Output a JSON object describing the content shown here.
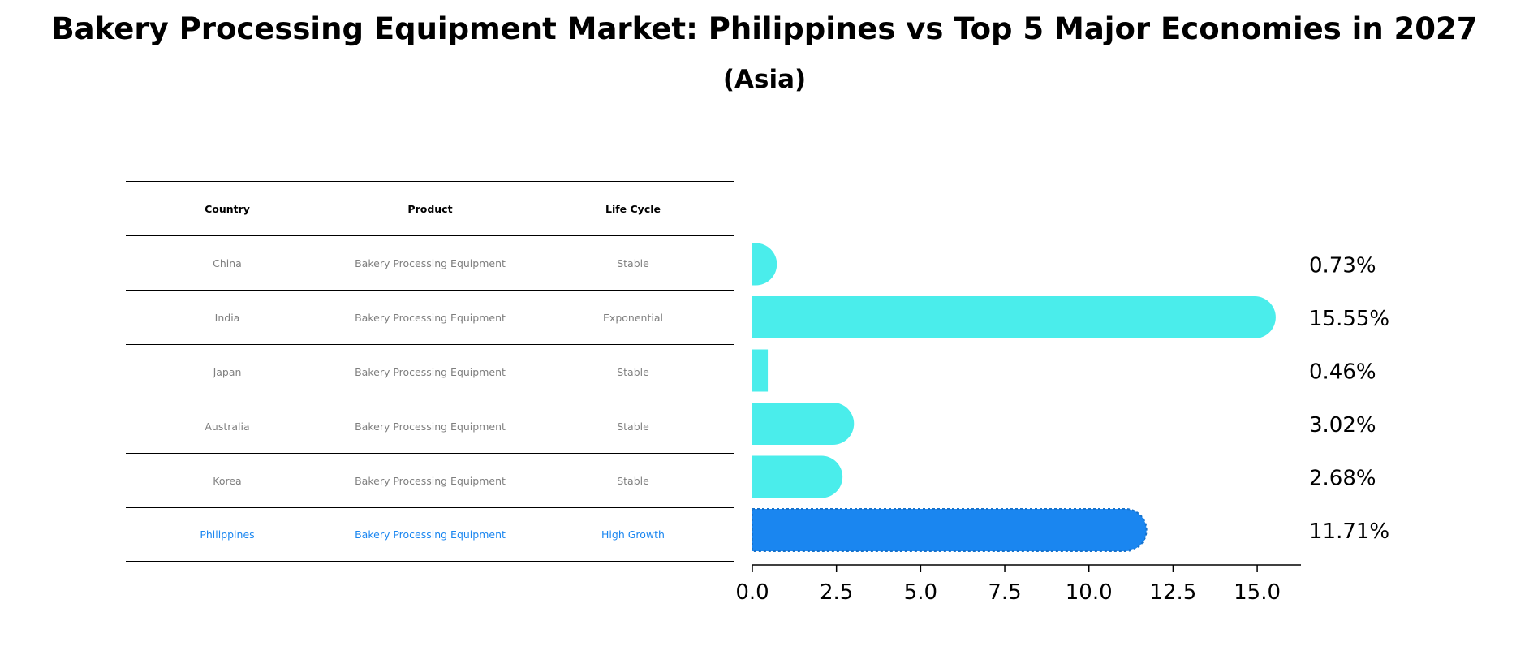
{
  "title": "Bakery Processing Equipment Market: Philippines vs Top 5 Major Economies in 2027",
  "subtitle": "(Asia)",
  "table": {
    "headers": [
      "Country",
      "Product",
      "Life Cycle"
    ],
    "rows": [
      [
        "China",
        "Bakery Processing Equipment",
        "Stable"
      ],
      [
        "India",
        "Bakery Processing Equipment",
        "Exponential"
      ],
      [
        "Japan",
        "Bakery Processing Equipment",
        "Stable"
      ],
      [
        "Australia",
        "Bakery Processing Equipment",
        "Stable"
      ],
      [
        "Korea",
        "Bakery Processing Equipment",
        "Stable"
      ],
      [
        "Philippines",
        "Bakery Processing Equipment",
        "High Growth"
      ]
    ]
  },
  "colors": {
    "bar": "#4aedeb",
    "highlight": "#1a86f0",
    "text_muted": "#7f7f7f"
  },
  "chart_data": {
    "type": "bar",
    "orientation": "horizontal",
    "categories": [
      "China",
      "India",
      "Japan",
      "Australia",
      "Korea",
      "Philippines"
    ],
    "values": [
      0.73,
      15.55,
      0.46,
      3.02,
      2.68,
      11.71
    ],
    "value_labels": [
      "0.73%",
      "15.55%",
      "0.46%",
      "3.02%",
      "2.68%",
      "11.71%"
    ],
    "highlight_category": "Philippines",
    "xlim": [
      0,
      16.3
    ],
    "xticks": [
      0.0,
      2.5,
      5.0,
      7.5,
      10.0,
      12.5,
      15.0
    ],
    "xtick_labels": [
      "0.0",
      "2.5",
      "5.0",
      "7.5",
      "10.0",
      "12.5",
      "15.0"
    ],
    "grid": false
  }
}
